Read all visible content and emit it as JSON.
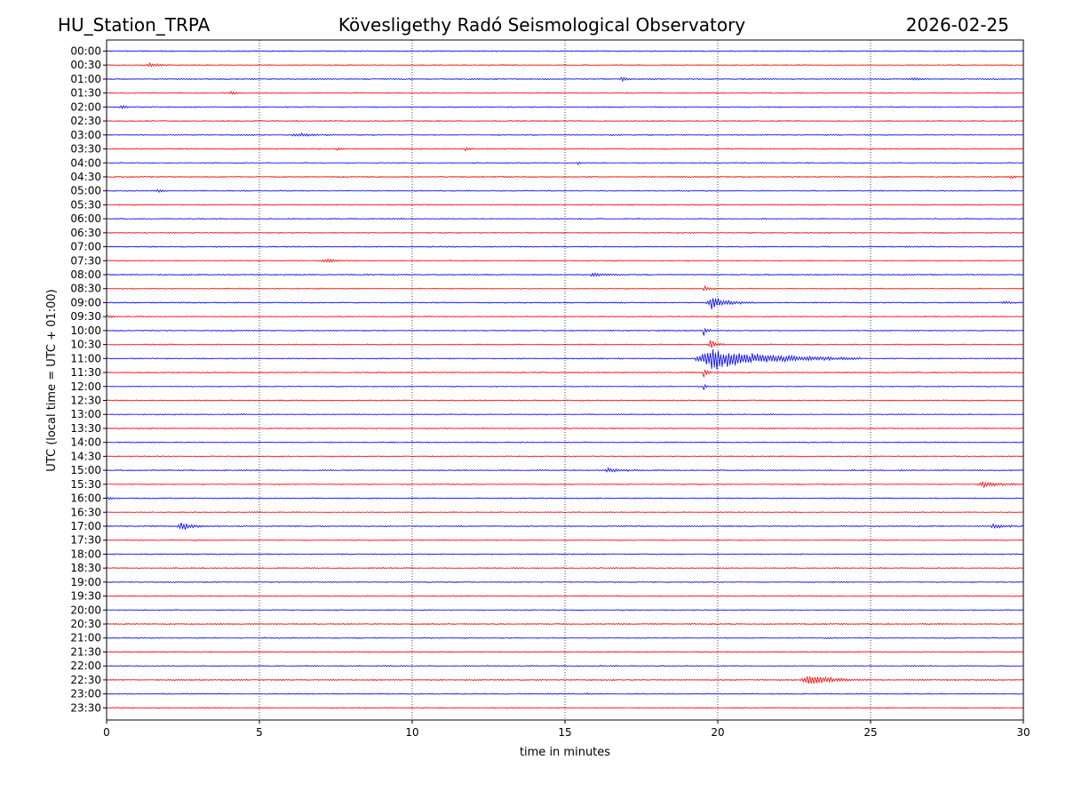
{
  "header": {
    "station": "HU_Station_TRPA",
    "title": "Kövesligethy Radó Seismological Observatory",
    "date": "2026-02-25"
  },
  "chart_data": {
    "type": "line",
    "subtype": "helicorder",
    "xlabel": "time in minutes",
    "ylabel": "UTC (local time = UTC + 01:00)",
    "xlim": [
      0,
      30
    ],
    "x_ticks": [
      "0",
      "5",
      "10",
      "15",
      "20",
      "25",
      "30"
    ],
    "x_tick_values": [
      0,
      5,
      10,
      15,
      20,
      25,
      30
    ],
    "grid_x_values": [
      5,
      10,
      15,
      20,
      25
    ],
    "row_labels": [
      "00:00",
      "00:30",
      "01:00",
      "01:30",
      "02:00",
      "02:30",
      "03:00",
      "03:30",
      "04:00",
      "04:30",
      "05:00",
      "05:30",
      "06:00",
      "06:30",
      "07:00",
      "07:30",
      "08:00",
      "08:30",
      "09:00",
      "09:30",
      "10:00",
      "10:30",
      "11:00",
      "11:30",
      "12:00",
      "12:30",
      "13:00",
      "13:30",
      "14:00",
      "14:30",
      "15:00",
      "15:30",
      "16:00",
      "16:30",
      "17:00",
      "17:30",
      "18:00",
      "18:30",
      "19:00",
      "19:30",
      "20:00",
      "20:30",
      "21:00",
      "21:30",
      "22:00",
      "22:30",
      "23:00",
      "23:30"
    ],
    "colors": [
      "#0000ff",
      "#ff0000"
    ],
    "noise_amplitude": 0.08,
    "events": [
      {
        "row": "00:30",
        "start": 1.3,
        "dur": 0.8,
        "amp": 0.35
      },
      {
        "row": "01:00",
        "start": 16.8,
        "dur": 0.4,
        "amp": 0.45
      },
      {
        "row": "01:00",
        "start": 26.3,
        "dur": 0.6,
        "amp": 0.35
      },
      {
        "row": "01:30",
        "start": 4.0,
        "dur": 0.5,
        "amp": 0.35
      },
      {
        "row": "02:00",
        "start": 0.4,
        "dur": 0.6,
        "amp": 0.3
      },
      {
        "row": "03:00",
        "start": 6.0,
        "dur": 1.5,
        "amp": 0.3
      },
      {
        "row": "03:30",
        "start": 11.7,
        "dur": 0.3,
        "amp": 0.45
      },
      {
        "row": "03:30",
        "start": 7.5,
        "dur": 0.4,
        "amp": 0.25
      },
      {
        "row": "04:00",
        "start": 15.4,
        "dur": 0.2,
        "amp": 0.35
      },
      {
        "row": "04:30",
        "start": 29.5,
        "dur": 0.5,
        "amp": 0.3
      },
      {
        "row": "05:00",
        "start": 1.6,
        "dur": 0.5,
        "amp": 0.35
      },
      {
        "row": "07:30",
        "start": 7.0,
        "dur": 1.3,
        "amp": 0.3
      },
      {
        "row": "08:00",
        "start": 15.8,
        "dur": 1.2,
        "amp": 0.35
      },
      {
        "row": "08:30",
        "start": 19.5,
        "dur": 0.5,
        "amp": 0.5
      },
      {
        "row": "09:00",
        "start": 19.6,
        "dur": 1.6,
        "amp": 1.1
      },
      {
        "row": "09:00",
        "start": 29.3,
        "dur": 0.7,
        "amp": 0.3
      },
      {
        "row": "09:30",
        "start": 0.0,
        "dur": 0.4,
        "amp": 0.35
      },
      {
        "row": "10:00",
        "start": 19.5,
        "dur": 0.3,
        "amp": 1.3
      },
      {
        "row": "10:30",
        "start": 19.7,
        "dur": 0.5,
        "amp": 1.0
      },
      {
        "row": "11:00",
        "start": 19.2,
        "dur": 5.5,
        "amp": 2.0
      },
      {
        "row": "11:30",
        "start": 19.5,
        "dur": 0.3,
        "amp": 1.0
      },
      {
        "row": "12:00",
        "start": 19.5,
        "dur": 0.2,
        "amp": 1.0
      },
      {
        "row": "15:00",
        "start": 16.2,
        "dur": 1.8,
        "amp": 0.3
      },
      {
        "row": "15:30",
        "start": 28.5,
        "dur": 1.5,
        "amp": 0.55
      },
      {
        "row": "16:00",
        "start": 0.0,
        "dur": 0.4,
        "amp": 0.3
      },
      {
        "row": "17:00",
        "start": 2.3,
        "dur": 1.0,
        "amp": 0.8
      },
      {
        "row": "17:00",
        "start": 28.9,
        "dur": 1.1,
        "amp": 0.4
      },
      {
        "row": "22:30",
        "start": 22.7,
        "dur": 2.2,
        "amp": 1.0
      },
      {
        "row": "23:00",
        "start": 15.7,
        "dur": 0.3,
        "amp": 0.2
      }
    ]
  }
}
